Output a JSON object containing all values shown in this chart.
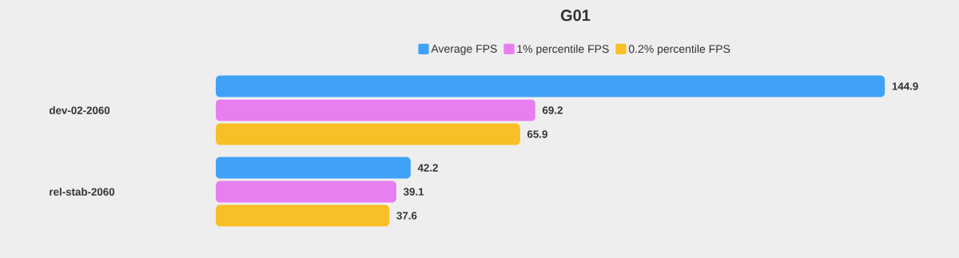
{
  "chart_data": {
    "type": "bar",
    "orientation": "horizontal",
    "title": "G01",
    "categories": [
      "dev-02-2060",
      "rel-stab-2060"
    ],
    "series": [
      {
        "name": "Average FPS",
        "color": "#3fa2f7",
        "values": [
          144.9,
          42.2
        ]
      },
      {
        "name": "1% percentile FPS",
        "color": "#e87ff0",
        "values": [
          69.2,
          39.1
        ]
      },
      {
        "name": "0.2% percentile FPS",
        "color": "#f9bf26",
        "values": [
          65.9,
          37.6
        ]
      }
    ],
    "data_labels": true,
    "legend": "top"
  }
}
